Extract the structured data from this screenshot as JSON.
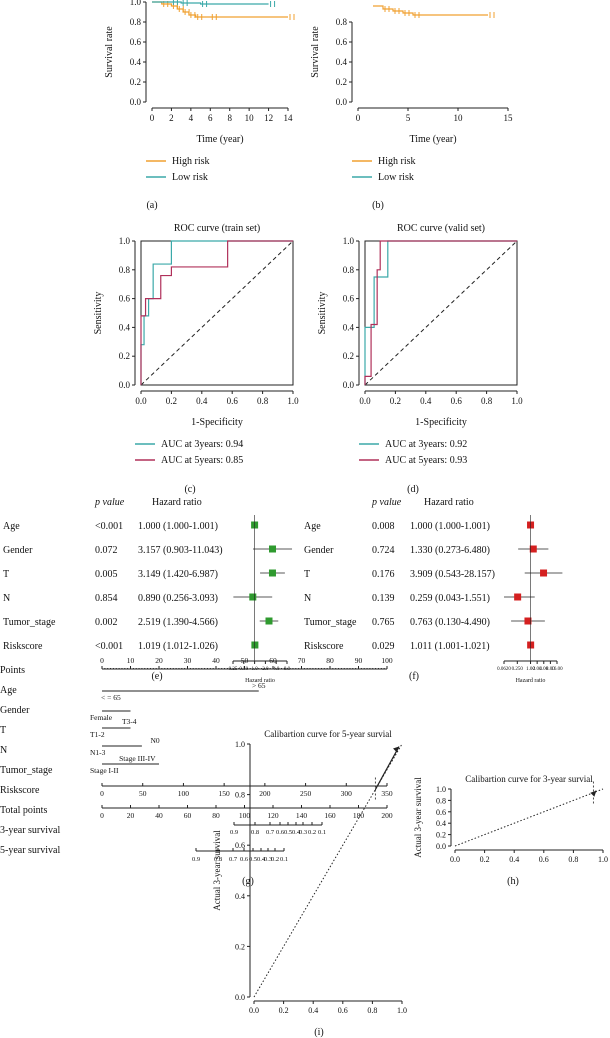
{
  "panel_labels": [
    "(a)",
    "(b)",
    "(c)",
    "(d)",
    "(e)",
    "(f)",
    "(g)",
    "(h)",
    "(i)"
  ],
  "chart_data": [
    {
      "id": "a",
      "type": "line",
      "xlabel": "Time (year)",
      "ylabel": "Survival rate",
      "xlim": [
        0,
        14
      ],
      "ylim": [
        0,
        1.0
      ],
      "xticks": [
        0,
        2,
        4,
        6,
        8,
        10,
        12,
        14
      ],
      "yticks": [
        0.0,
        0.2,
        0.4,
        0.6,
        0.8,
        1.0
      ],
      "legend_position": "bottom",
      "series": [
        {
          "name": "High risk",
          "color": "#f0a030",
          "x": [
            0,
            1,
            2,
            2.6,
            3.2,
            3.8,
            4.5,
            6,
            14
          ],
          "y": [
            1.0,
            0.98,
            0.96,
            0.93,
            0.9,
            0.87,
            0.85,
            0.85,
            0.85
          ]
        },
        {
          "name": "Low risk",
          "color": "#3ba9a9",
          "x": [
            0,
            2,
            3,
            5,
            12
          ],
          "y": [
            1.0,
            1.0,
            0.99,
            0.98,
            0.98
          ]
        }
      ]
    },
    {
      "id": "b",
      "type": "line",
      "xlabel": "Time (year)",
      "ylabel": "Survival rate",
      "xlim": [
        0,
        15
      ],
      "ylim": [
        0,
        1.0
      ],
      "xticks": [
        0,
        5,
        10,
        15
      ],
      "yticks": [
        0.0,
        0.2,
        0.4,
        0.6,
        0.8
      ],
      "legend_position": "bottom",
      "series": [
        {
          "name": "High risk",
          "color": "#f0a030",
          "x": [
            1.5,
            2.5,
            3.5,
            4.5,
            5.5,
            13
          ],
          "y": [
            0.96,
            0.93,
            0.91,
            0.89,
            0.87,
            0.87
          ]
        },
        {
          "name": "Low risk",
          "color": "#3ba9a9",
          "x": [],
          "y": []
        }
      ]
    },
    {
      "id": "c",
      "type": "line",
      "title": "ROC curve (train set)",
      "xlabel": "1-Specificity",
      "ylabel": "Sensitivity",
      "xlim": [
        0,
        1
      ],
      "ylim": [
        0,
        1
      ],
      "ticks": [
        0.0,
        0.2,
        0.4,
        0.6,
        0.8,
        1.0
      ],
      "legend_position": "bottom",
      "series": [
        {
          "name": "AUC at 3years: 0.94",
          "color": "#3ba9a9",
          "x": [
            0,
            0,
            0.02,
            0.02,
            0.05,
            0.05,
            0.08,
            0.08,
            0.13,
            0.13,
            0.2,
            0.2,
            1
          ],
          "y": [
            0,
            0.28,
            0.28,
            0.48,
            0.48,
            0.6,
            0.6,
            0.84,
            0.84,
            0.84,
            0.84,
            1,
            1
          ]
        },
        {
          "name": "AUC at 5years: 0.85",
          "color": "#b0305a",
          "x": [
            0,
            0,
            0.03,
            0.03,
            0.05,
            0.05,
            0.13,
            0.13,
            0.2,
            0.2,
            0.57,
            0.57,
            1
          ],
          "y": [
            0,
            0.48,
            0.48,
            0.6,
            0.6,
            0.6,
            0.6,
            0.76,
            0.76,
            0.82,
            0.82,
            1,
            1
          ]
        }
      ]
    },
    {
      "id": "d",
      "type": "line",
      "title": "ROC curve (valid set)",
      "xlabel": "1-Specificity",
      "ylabel": "Sensitivity",
      "xlim": [
        0,
        1
      ],
      "ylim": [
        0,
        1
      ],
      "ticks": [
        0.0,
        0.2,
        0.4,
        0.6,
        0.8,
        1.0
      ],
      "legend_position": "bottom",
      "series": [
        {
          "name": "AUC at 3years: 0.92",
          "color": "#3ba9a9",
          "x": [
            0,
            0,
            0.06,
            0.06,
            0.1,
            0.1,
            0.15,
            0.15,
            1
          ],
          "y": [
            0,
            0.4,
            0.4,
            0.75,
            0.75,
            0.75,
            0.75,
            1,
            1
          ]
        },
        {
          "name": "AUC at 5years: 0.93",
          "color": "#b0305a",
          "x": [
            0,
            0,
            0.04,
            0.04,
            0.08,
            0.08,
            0.1,
            0.1,
            1
          ],
          "y": [
            0,
            0.06,
            0.06,
            0.42,
            0.42,
            0.8,
            0.8,
            1,
            1
          ]
        }
      ]
    },
    {
      "id": "e",
      "type": "table",
      "headers": [
        "p value",
        "Hazard ratio"
      ],
      "xlabel": "Hazard ratio",
      "ticks": [
        "0.25",
        "0.50",
        "1.0",
        "2.0",
        "4.0",
        "8.0"
      ],
      "xlim": [
        0.25,
        8
      ],
      "color": "#2f9a2f",
      "rows": [
        {
          "name": "Age",
          "p": "<0.001",
          "hr_text": "1.000 (1.000-1.001)",
          "hr": 1.0,
          "lo": 1.0,
          "hi": 1.001
        },
        {
          "name": "Gender",
          "p": "0.072",
          "hr_text": "3.157 (0.903-11.043)",
          "hr": 3.157,
          "lo": 0.903,
          "hi": 11.043
        },
        {
          "name": "T",
          "p": "0.005",
          "hr_text": "3.149 (1.420-6.987)",
          "hr": 3.149,
          "lo": 1.42,
          "hi": 6.987
        },
        {
          "name": "N",
          "p": "0.854",
          "hr_text": "0.890 (0.256-3.093)",
          "hr": 0.89,
          "lo": 0.256,
          "hi": 3.093
        },
        {
          "name": "Tumor_stage",
          "p": "0.002",
          "hr_text": "2.519 (1.390-4.566)",
          "hr": 2.519,
          "lo": 1.39,
          "hi": 4.566
        },
        {
          "name": "Riskscore",
          "p": "<0.001",
          "hr_text": "1.019 (1.012-1.026)",
          "hr": 1.019,
          "lo": 1.012,
          "hi": 1.026
        }
      ]
    },
    {
      "id": "f",
      "type": "table",
      "headers": [
        "p value",
        "Hazard ratio"
      ],
      "xlabel": "Hazard ratio",
      "ticks": [
        "0.0620",
        "0.250",
        "1.00",
        "2.00",
        "4.00",
        "8.00",
        "16.00"
      ],
      "xlim": [
        0.062,
        16
      ],
      "color": "#d42020",
      "rows": [
        {
          "name": "Age",
          "p": "0.008",
          "hr_text": "1.000 (1.000-1.001)",
          "hr": 1.0,
          "lo": 1.0,
          "hi": 1.001
        },
        {
          "name": "Gender",
          "p": "0.724",
          "hr_text": "1.330 (0.273-6.480)",
          "hr": 1.33,
          "lo": 0.273,
          "hi": 6.48
        },
        {
          "name": "T",
          "p": "0.176",
          "hr_text": "3.909 (0.543-28.157)",
          "hr": 3.909,
          "lo": 0.543,
          "hi": 28.157
        },
        {
          "name": "N",
          "p": "0.139",
          "hr_text": "0.259 (0.043-1.551)",
          "hr": 0.259,
          "lo": 0.043,
          "hi": 1.551
        },
        {
          "name": "Tumor_stage",
          "p": "0.765",
          "hr_text": "0.763 (0.130-4.490)",
          "hr": 0.763,
          "lo": 0.13,
          "hi": 4.49
        },
        {
          "name": "Riskscore",
          "p": "0.029",
          "hr_text": "1.011 (1.001-1.021)",
          "hr": 1.011,
          "lo": 1.001,
          "hi": 1.021
        }
      ]
    },
    {
      "id": "h",
      "type": "line",
      "title": "Calibartion curve for 3-year survial",
      "ylabel": "Actual 3-year survival",
      "xlabel": "",
      "xlim": [
        0,
        1
      ],
      "ylim": [
        0,
        1
      ],
      "xticks": [
        0.0,
        0.2,
        0.4,
        0.6,
        0.8,
        1.0
      ],
      "yticks": [
        0.0,
        0.2,
        0.4,
        0.6,
        0.8,
        1.0
      ],
      "series": [
        {
          "name": "",
          "x": [
            0.935,
            0.955
          ],
          "y": [
            0.92,
            0.97
          ]
        }
      ]
    },
    {
      "id": "i",
      "type": "line",
      "title": "Calibartion curve for 5-year survial",
      "ylabel": "Actual 3-year survival",
      "xlabel": "",
      "xlim": [
        0,
        1
      ],
      "ylim": [
        0,
        1
      ],
      "xticks": [
        0.0,
        0.2,
        0.4,
        0.6,
        0.8,
        1.0
      ],
      "yticks": [
        0.0,
        0.2,
        0.4,
        0.6,
        0.8,
        1.0
      ],
      "series": [
        {
          "name": "",
          "x": [
            0.82,
            0.98
          ],
          "y": [
            0.82,
            0.99
          ]
        }
      ]
    }
  ],
  "nomogram": {
    "labels": [
      "Points",
      "Age",
      "Gender",
      "T",
      "N",
      "Tumor_stage",
      "Riskscore",
      "Total points",
      "3-year survival",
      "5-year survival"
    ],
    "points_ticks": [
      "0",
      "10",
      "20",
      "30",
      "40",
      "50",
      "60",
      "70",
      "80",
      "90",
      "100"
    ],
    "age": [
      "< = 65",
      "> 65"
    ],
    "gender": [
      "Female"
    ],
    "t": [
      "T1-2",
      "T3-4"
    ],
    "n": [
      "N1-3",
      "N0"
    ],
    "stage": [
      "Stage I-II",
      "Stage III-IV"
    ],
    "risk_ticks": [
      "0",
      "50",
      "100",
      "150",
      "200",
      "250",
      "300",
      "350"
    ],
    "total_ticks": [
      "0",
      "20",
      "40",
      "60",
      "80",
      "100",
      "120",
      "140",
      "160",
      "180",
      "200"
    ],
    "surv3_ticks": [
      "0.9",
      "0.8",
      "0.7",
      "0.6",
      "0.5",
      "0.4",
      "0.3",
      "0.2",
      "0.1"
    ],
    "surv5_ticks": [
      "0.9",
      "0.8",
      "0.7",
      "0.6",
      "0.5",
      "0.4",
      "0.3",
      "0.2",
      "0.1"
    ]
  }
}
